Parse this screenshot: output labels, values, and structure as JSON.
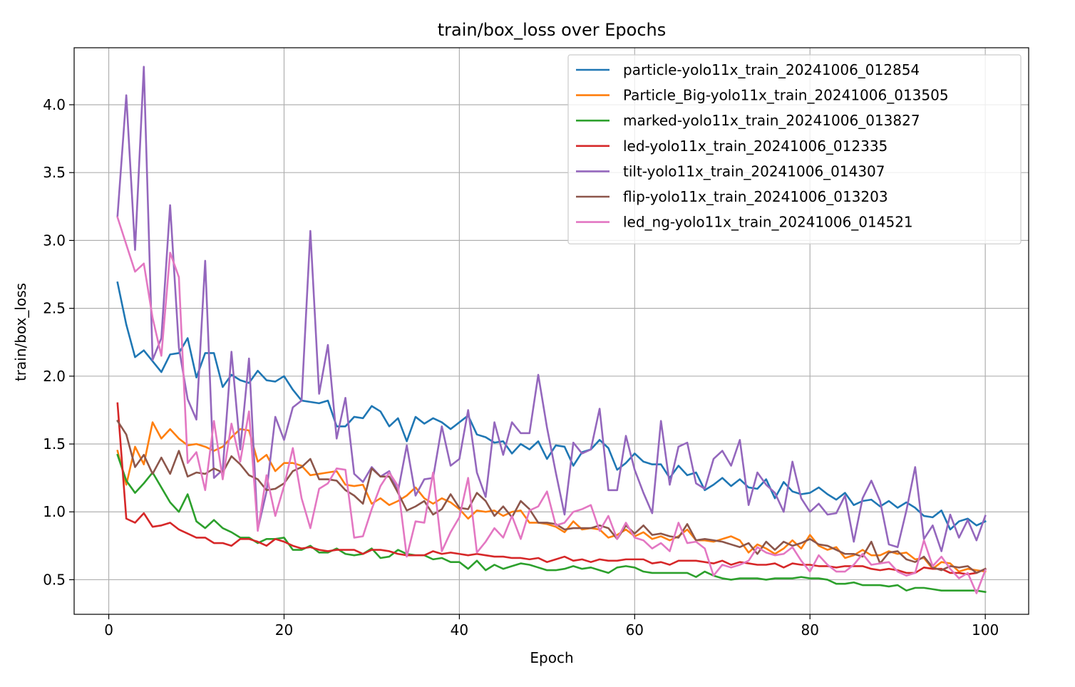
{
  "chart_data": {
    "type": "line",
    "title": "train/box_loss over Epochs",
    "xlabel": "Epoch",
    "ylabel": "train/box_loss",
    "xlim": [
      -3.95,
      104.95
    ],
    "ylim": [
      0.245,
      4.42
    ],
    "xticks": [
      0,
      20,
      40,
      60,
      80,
      100
    ],
    "yticks": [
      0.5,
      1.0,
      1.5,
      2.0,
      2.5,
      3.0,
      3.5,
      4.0
    ],
    "ytick_labels": [
      "0.5",
      "1.0",
      "1.5",
      "2.0",
      "2.5",
      "3.0",
      "3.5",
      "4.0"
    ],
    "grid": true,
    "legend_position": "top-right",
    "x": [
      1,
      2,
      3,
      4,
      5,
      6,
      7,
      8,
      9,
      10,
      11,
      12,
      13,
      14,
      15,
      16,
      17,
      18,
      19,
      20,
      21,
      22,
      23,
      24,
      25,
      26,
      27,
      28,
      29,
      30,
      31,
      32,
      33,
      34,
      35,
      36,
      37,
      38,
      39,
      40,
      41,
      42,
      43,
      44,
      45,
      46,
      47,
      48,
      49,
      50,
      51,
      52,
      53,
      54,
      55,
      56,
      57,
      58,
      59,
      60,
      61,
      62,
      63,
      64,
      65,
      66,
      67,
      68,
      69,
      70,
      71,
      72,
      73,
      74,
      75,
      76,
      77,
      78,
      79,
      80,
      81,
      82,
      83,
      84,
      85,
      86,
      87,
      88,
      89,
      90,
      91,
      92,
      93,
      94,
      95,
      96,
      97,
      98,
      99,
      100
    ],
    "series": [
      {
        "name": "particle-yolo11x_train_20241006_012854",
        "color": "#1f77b4",
        "values": [
          2.69,
          2.38,
          2.14,
          2.19,
          2.11,
          2.03,
          2.16,
          2.17,
          2.28,
          1.99,
          2.17,
          2.17,
          1.92,
          2.01,
          1.97,
          1.95,
          2.04,
          1.97,
          1.96,
          2.0,
          1.9,
          1.82,
          1.81,
          1.8,
          1.82,
          1.63,
          1.63,
          1.7,
          1.69,
          1.78,
          1.74,
          1.63,
          1.69,
          1.52,
          1.7,
          1.65,
          1.69,
          1.66,
          1.61,
          1.66,
          1.71,
          1.57,
          1.55,
          1.51,
          1.52,
          1.43,
          1.5,
          1.46,
          1.52,
          1.39,
          1.49,
          1.48,
          1.34,
          1.44,
          1.46,
          1.53,
          1.47,
          1.31,
          1.36,
          1.43,
          1.37,
          1.35,
          1.35,
          1.25,
          1.34,
          1.27,
          1.29,
          1.16,
          1.2,
          1.25,
          1.19,
          1.24,
          1.18,
          1.17,
          1.24,
          1.1,
          1.22,
          1.15,
          1.13,
          1.14,
          1.18,
          1.13,
          1.09,
          1.14,
          1.05,
          1.08,
          1.09,
          1.04,
          1.08,
          1.03,
          1.07,
          1.03,
          0.97,
          0.96,
          1.01,
          0.87,
          0.93,
          0.95,
          0.9,
          0.93
        ]
      },
      {
        "name": "Particle_Big-yolo11x_train_20241006_013505",
        "color": "#ff7f0e",
        "values": [
          1.45,
          1.2,
          1.48,
          1.35,
          1.66,
          1.54,
          1.61,
          1.54,
          1.49,
          1.5,
          1.48,
          1.45,
          1.48,
          1.55,
          1.61,
          1.6,
          1.37,
          1.42,
          1.3,
          1.36,
          1.36,
          1.34,
          1.27,
          1.28,
          1.29,
          1.3,
          1.2,
          1.19,
          1.2,
          1.06,
          1.1,
          1.05,
          1.08,
          1.12,
          1.18,
          1.1,
          1.06,
          1.1,
          1.07,
          1.02,
          0.95,
          1.01,
          1.0,
          1.01,
          0.97,
          1.0,
          1.01,
          0.92,
          0.92,
          0.91,
          0.89,
          0.85,
          0.93,
          0.87,
          0.88,
          0.87,
          0.81,
          0.83,
          0.87,
          0.82,
          0.85,
          0.8,
          0.82,
          0.79,
          0.82,
          0.87,
          0.79,
          0.79,
          0.78,
          0.8,
          0.82,
          0.79,
          0.7,
          0.76,
          0.73,
          0.69,
          0.73,
          0.79,
          0.73,
          0.83,
          0.75,
          0.72,
          0.74,
          0.66,
          0.68,
          0.72,
          0.68,
          0.68,
          0.71,
          0.69,
          0.7,
          0.65,
          0.66,
          0.58,
          0.63,
          0.62,
          0.56,
          0.58,
          0.57,
          0.56
        ]
      },
      {
        "name": "marked-yolo11x_train_20241006_013827",
        "color": "#2ca02c",
        "values": [
          1.42,
          1.23,
          1.14,
          1.21,
          1.29,
          1.18,
          1.07,
          1.0,
          1.13,
          0.93,
          0.88,
          0.94,
          0.88,
          0.85,
          0.81,
          0.81,
          0.77,
          0.8,
          0.8,
          0.81,
          0.72,
          0.72,
          0.75,
          0.7,
          0.7,
          0.73,
          0.69,
          0.68,
          0.69,
          0.73,
          0.66,
          0.67,
          0.72,
          0.69,
          0.68,
          0.68,
          0.65,
          0.66,
          0.63,
          0.63,
          0.58,
          0.64,
          0.57,
          0.61,
          0.58,
          0.6,
          0.62,
          0.61,
          0.59,
          0.57,
          0.57,
          0.58,
          0.6,
          0.58,
          0.59,
          0.57,
          0.55,
          0.59,
          0.6,
          0.59,
          0.56,
          0.55,
          0.55,
          0.55,
          0.55,
          0.55,
          0.52,
          0.56,
          0.53,
          0.51,
          0.5,
          0.51,
          0.51,
          0.51,
          0.5,
          0.51,
          0.51,
          0.51,
          0.52,
          0.51,
          0.51,
          0.5,
          0.47,
          0.47,
          0.48,
          0.46,
          0.46,
          0.46,
          0.45,
          0.46,
          0.42,
          0.44,
          0.44,
          0.43,
          0.42,
          0.42,
          0.42,
          0.42,
          0.42,
          0.41
        ]
      },
      {
        "name": "led-yolo11x_train_20241006_012335",
        "color": "#d62728",
        "values": [
          1.8,
          0.95,
          0.92,
          0.99,
          0.89,
          0.9,
          0.92,
          0.87,
          0.84,
          0.81,
          0.81,
          0.77,
          0.77,
          0.75,
          0.8,
          0.8,
          0.78,
          0.75,
          0.8,
          0.78,
          0.75,
          0.73,
          0.74,
          0.72,
          0.71,
          0.72,
          0.72,
          0.72,
          0.69,
          0.72,
          0.72,
          0.71,
          0.69,
          0.68,
          0.68,
          0.68,
          0.71,
          0.69,
          0.7,
          0.69,
          0.68,
          0.69,
          0.68,
          0.67,
          0.67,
          0.66,
          0.66,
          0.65,
          0.66,
          0.63,
          0.65,
          0.67,
          0.64,
          0.65,
          0.63,
          0.65,
          0.64,
          0.64,
          0.65,
          0.65,
          0.65,
          0.62,
          0.63,
          0.61,
          0.64,
          0.64,
          0.64,
          0.63,
          0.62,
          0.64,
          0.61,
          0.63,
          0.62,
          0.61,
          0.61,
          0.62,
          0.59,
          0.62,
          0.61,
          0.61,
          0.6,
          0.6,
          0.59,
          0.6,
          0.6,
          0.6,
          0.58,
          0.57,
          0.58,
          0.57,
          0.55,
          0.55,
          0.59,
          0.58,
          0.58,
          0.55,
          0.55,
          0.54,
          0.55,
          0.58
        ]
      },
      {
        "name": "tilt-yolo11x_train_20241006_014307",
        "color": "#9467bd",
        "values": [
          3.18,
          4.07,
          2.93,
          4.28,
          2.12,
          2.28,
          3.26,
          2.21,
          1.83,
          1.68,
          2.85,
          1.25,
          1.31,
          2.18,
          1.46,
          2.13,
          0.87,
          1.15,
          1.7,
          1.53,
          1.77,
          1.82,
          3.07,
          1.87,
          2.23,
          1.54,
          1.84,
          1.28,
          1.22,
          1.33,
          1.26,
          1.3,
          1.15,
          1.49,
          1.12,
          1.24,
          1.25,
          1.63,
          1.34,
          1.39,
          1.75,
          1.29,
          1.11,
          1.66,
          1.42,
          1.66,
          1.58,
          1.58,
          2.01,
          1.62,
          1.29,
          0.98,
          1.51,
          1.43,
          1.46,
          1.76,
          1.16,
          1.16,
          1.56,
          1.31,
          1.14,
          0.99,
          1.67,
          1.2,
          1.48,
          1.51,
          1.21,
          1.17,
          1.39,
          1.45,
          1.34,
          1.53,
          1.05,
          1.29,
          1.2,
          1.14,
          1.0,
          1.37,
          1.1,
          1.0,
          1.06,
          0.98,
          0.99,
          1.12,
          0.78,
          1.1,
          1.23,
          1.08,
          0.76,
          0.74,
          1.01,
          1.33,
          0.8,
          0.9,
          0.71,
          0.98,
          0.81,
          0.94,
          0.79,
          0.97
        ]
      },
      {
        "name": "flip-yolo11x_train_20241006_013203",
        "color": "#8c564b",
        "values": [
          1.67,
          1.57,
          1.33,
          1.42,
          1.28,
          1.4,
          1.28,
          1.45,
          1.26,
          1.29,
          1.28,
          1.32,
          1.29,
          1.41,
          1.35,
          1.27,
          1.24,
          1.16,
          1.17,
          1.21,
          1.3,
          1.33,
          1.39,
          1.24,
          1.24,
          1.23,
          1.16,
          1.12,
          1.06,
          1.32,
          1.26,
          1.26,
          1.14,
          1.01,
          1.04,
          1.08,
          0.98,
          1.02,
          1.13,
          1.03,
          1.02,
          1.14,
          1.08,
          0.97,
          1.04,
          0.96,
          1.08,
          1.02,
          0.92,
          0.92,
          0.91,
          0.87,
          0.88,
          0.88,
          0.88,
          0.9,
          0.88,
          0.8,
          0.9,
          0.84,
          0.9,
          0.83,
          0.84,
          0.82,
          0.81,
          0.91,
          0.79,
          0.8,
          0.79,
          0.78,
          0.76,
          0.74,
          0.77,
          0.69,
          0.78,
          0.72,
          0.78,
          0.75,
          0.77,
          0.8,
          0.76,
          0.75,
          0.72,
          0.69,
          0.69,
          0.67,
          0.78,
          0.62,
          0.7,
          0.71,
          0.65,
          0.63,
          0.67,
          0.59,
          0.57,
          0.6,
          0.59,
          0.6,
          0.55,
          0.58
        ]
      },
      {
        "name": "led_ng-yolo11x_train_20241006_014521",
        "color": "#e377c2",
        "values": [
          3.17,
          2.97,
          2.77,
          2.83,
          2.43,
          2.15,
          2.91,
          2.73,
          1.36,
          1.44,
          1.16,
          1.67,
          1.24,
          1.65,
          1.37,
          1.74,
          0.86,
          1.27,
          0.97,
          1.19,
          1.47,
          1.1,
          0.88,
          1.17,
          1.21,
          1.32,
          1.31,
          0.81,
          0.82,
          1.02,
          1.19,
          1.29,
          1.19,
          0.67,
          0.93,
          0.92,
          1.29,
          0.71,
          0.85,
          0.96,
          1.25,
          0.7,
          0.78,
          0.88,
          0.81,
          0.97,
          0.8,
          1.01,
          1.04,
          1.15,
          0.9,
          0.92,
          1.0,
          1.02,
          1.05,
          0.86,
          0.97,
          0.8,
          0.92,
          0.81,
          0.79,
          0.73,
          0.77,
          0.71,
          0.92,
          0.77,
          0.78,
          0.73,
          0.53,
          0.61,
          0.59,
          0.61,
          0.64,
          0.74,
          0.7,
          0.68,
          0.69,
          0.74,
          0.64,
          0.56,
          0.68,
          0.61,
          0.56,
          0.56,
          0.61,
          0.69,
          0.61,
          0.62,
          0.63,
          0.56,
          0.53,
          0.55,
          0.79,
          0.6,
          0.67,
          0.58,
          0.51,
          0.55,
          0.4,
          0.57
        ]
      }
    ]
  }
}
